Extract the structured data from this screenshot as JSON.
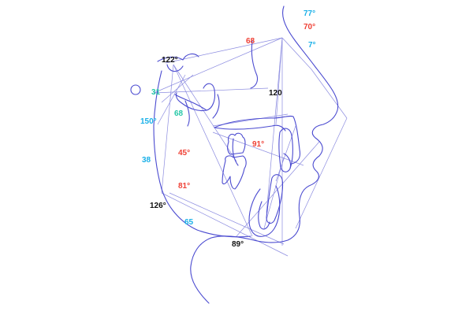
{
  "colors": {
    "trace": "#4a4ad0",
    "reference_lines": "#8c8ce0",
    "black": "#111111",
    "red": "#ef4035",
    "blue": "#1ab0e8",
    "green": "#28c8a8"
  },
  "measurements": {
    "m_122": {
      "text": "122°",
      "color": "black"
    },
    "m_31": {
      "text": "31",
      "color": "green"
    },
    "m_68_angle": {
      "text": "68",
      "color": "green"
    },
    "m_150": {
      "text": "150°",
      "color": "blue"
    },
    "m_38": {
      "text": "38",
      "color": "blue"
    },
    "m_45": {
      "text": "45°",
      "color": "red"
    },
    "m_81": {
      "text": "81°",
      "color": "red"
    },
    "m_126": {
      "text": "126°",
      "color": "black"
    },
    "m_65": {
      "text": "65",
      "color": "blue"
    },
    "m_89": {
      "text": "89°",
      "color": "black"
    },
    "m_68_top": {
      "text": "68",
      "color": "red"
    },
    "m_120": {
      "text": "120",
      "color": "black"
    },
    "m_91": {
      "text": "91°",
      "color": "red"
    },
    "m_77": {
      "text": "77°",
      "color": "blue"
    },
    "m_70": {
      "text": "70°",
      "color": "red"
    },
    "m_7": {
      "text": "7°",
      "color": "blue"
    }
  }
}
